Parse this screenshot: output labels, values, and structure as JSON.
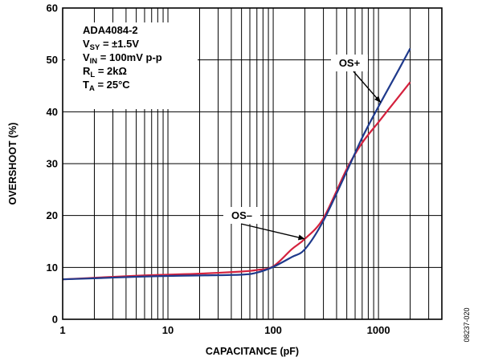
{
  "chart_data": {
    "type": "line",
    "xlabel": "CAPACITANCE (pF)",
    "ylabel": "OVERSHOOT (%)",
    "xscale": "log",
    "xlim": [
      1,
      4000
    ],
    "ylim": [
      0,
      60
    ],
    "xticks": [
      1,
      10,
      100,
      1000
    ],
    "xtick_labels": [
      "1",
      "10",
      "100",
      "1000"
    ],
    "yticks": [
      0,
      10,
      20,
      30,
      40,
      50,
      60
    ],
    "ytick_labels": [
      "0",
      "10",
      "20",
      "30",
      "40",
      "50",
      "60"
    ],
    "grid": true,
    "conditions": [
      {
        "main": "ADA4084-2",
        "sub": "",
        "rest": ""
      },
      {
        "main": "V",
        "sub": "SY",
        "rest": " = ±1.5V"
      },
      {
        "main": "V",
        "sub": "IN",
        "rest": " = 100mV p-p"
      },
      {
        "main": "R",
        "sub": "L",
        "rest": " = 2kΩ"
      },
      {
        "main": "T",
        "sub": "A",
        "rest": " = 25°C"
      }
    ],
    "figure_id": "08237-020",
    "series": [
      {
        "name": "OS+",
        "color": "#1f3a8c",
        "x": [
          1,
          2,
          5,
          10,
          20,
          50,
          70,
          100,
          150,
          200,
          300,
          500,
          700,
          1000,
          1500,
          2000
        ],
        "y": [
          7.7,
          7.9,
          8.2,
          8.35,
          8.45,
          8.6,
          9.0,
          10.1,
          12.0,
          13.5,
          19.0,
          28.5,
          35.0,
          41.0,
          47.5,
          52.2
        ]
      },
      {
        "name": "OS–",
        "color": "#d4213d",
        "x": [
          1,
          2,
          5,
          10,
          20,
          50,
          70,
          100,
          150,
          200,
          300,
          500,
          700,
          1000,
          1500,
          2000
        ],
        "y": [
          7.7,
          8.0,
          8.4,
          8.6,
          8.8,
          9.2,
          9.5,
          10.2,
          13.5,
          15.5,
          19.5,
          29.0,
          34.0,
          38.0,
          42.5,
          45.7
        ]
      }
    ],
    "annotations": [
      {
        "text": "OS+",
        "series": 0,
        "x": 1050
      },
      {
        "text": "OS–",
        "series": 1,
        "x": 200
      }
    ]
  }
}
